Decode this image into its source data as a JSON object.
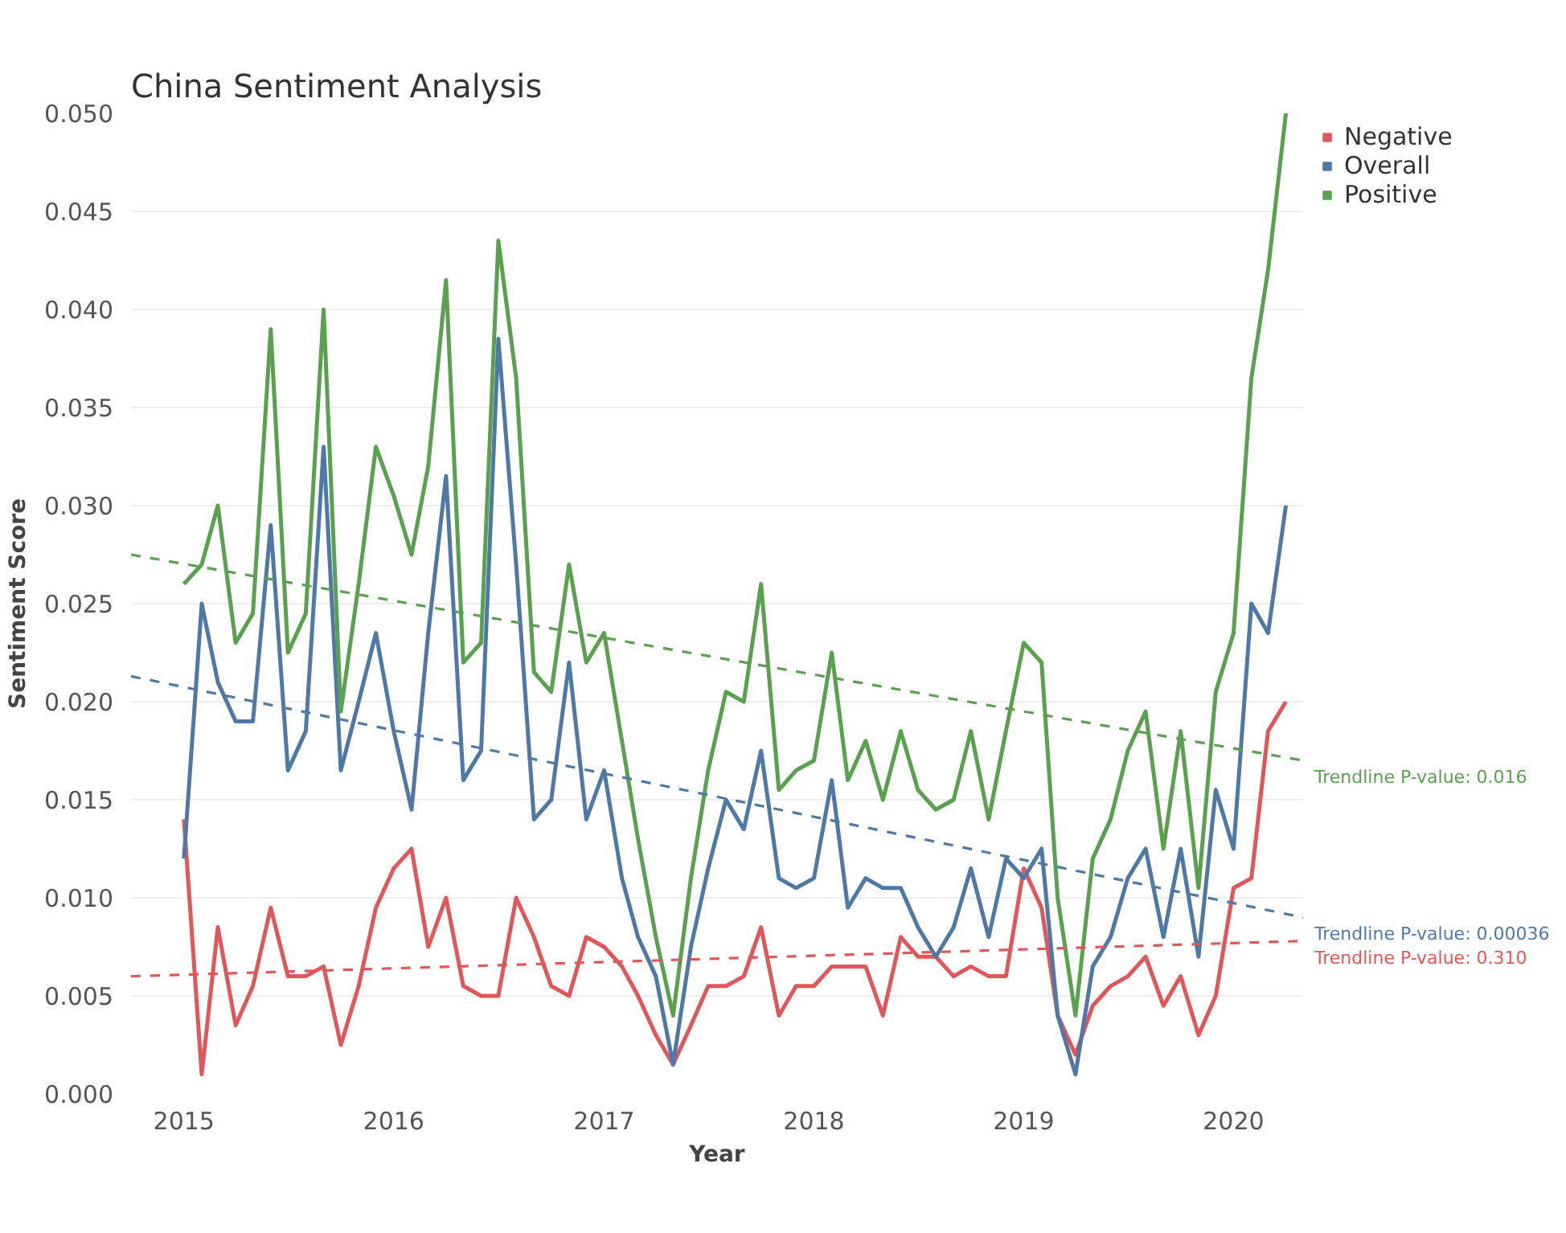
{
  "chart_data": {
    "type": "line",
    "title": "China Sentiment Analysis",
    "xlabel": "Year",
    "ylabel": "Sentiment Score",
    "x": [
      "2015-01",
      "2015-02",
      "2015-03",
      "2015-04",
      "2015-05",
      "2015-06",
      "2015-07",
      "2015-08",
      "2015-09",
      "2015-10",
      "2015-11",
      "2015-12",
      "2016-01",
      "2016-02",
      "2016-03",
      "2016-04",
      "2016-05",
      "2016-06",
      "2016-07",
      "2016-08",
      "2016-09",
      "2016-10",
      "2016-11",
      "2016-12",
      "2017-01",
      "2017-02",
      "2017-03",
      "2017-04",
      "2017-05",
      "2017-06",
      "2017-07",
      "2017-08",
      "2017-09",
      "2017-10",
      "2017-11",
      "2017-12",
      "2018-01",
      "2018-02",
      "2018-03",
      "2018-04",
      "2018-05",
      "2018-06",
      "2018-07",
      "2018-08",
      "2018-09",
      "2018-10",
      "2018-11",
      "2018-12",
      "2019-01",
      "2019-02",
      "2019-03",
      "2019-04",
      "2019-05",
      "2019-06",
      "2019-07",
      "2019-08",
      "2019-09",
      "2019-10",
      "2019-11",
      "2019-12",
      "2020-01",
      "2020-02",
      "2020-03",
      "2020-04"
    ],
    "series": [
      {
        "name": "Negative",
        "color": "#e15759",
        "values": [
          0.014,
          0.001,
          0.0085,
          0.0035,
          0.0055,
          0.0095,
          0.006,
          0.006,
          0.0065,
          0.0025,
          0.0055,
          0.0095,
          0.0115,
          0.0125,
          0.0075,
          0.01,
          0.0055,
          0.005,
          0.005,
          0.01,
          0.008,
          0.0055,
          0.005,
          0.008,
          0.0075,
          0.0065,
          0.005,
          0.003,
          0.0015,
          0.0035,
          0.0055,
          0.0055,
          0.006,
          0.0085,
          0.004,
          0.0055,
          0.0055,
          0.0065,
          0.0065,
          0.0065,
          0.004,
          0.008,
          0.007,
          0.007,
          0.006,
          0.0065,
          0.006,
          0.006,
          0.0115,
          0.0095,
          0.004,
          0.002,
          0.0045,
          0.0055,
          0.006,
          0.007,
          0.0045,
          0.006,
          0.003,
          0.005,
          0.0105,
          0.011,
          0.0185,
          0.02
        ]
      },
      {
        "name": "Overall",
        "color": "#4e79a7",
        "values": [
          0.012,
          0.025,
          0.021,
          0.019,
          0.019,
          0.029,
          0.0165,
          0.0185,
          0.033,
          0.0165,
          0.02,
          0.0235,
          0.0185,
          0.0145,
          0.0235,
          0.0315,
          0.016,
          0.0175,
          0.0385,
          0.027,
          0.014,
          0.015,
          0.022,
          0.014,
          0.0165,
          0.011,
          0.008,
          0.006,
          0.0015,
          0.0075,
          0.0115,
          0.015,
          0.0135,
          0.0175,
          0.011,
          0.0105,
          0.011,
          0.016,
          0.0095,
          0.011,
          0.0105,
          0.0105,
          0.0085,
          0.007,
          0.0085,
          0.0115,
          0.008,
          0.012,
          0.011,
          0.0125,
          0.004,
          0.001,
          0.0065,
          0.008,
          0.011,
          0.0125,
          0.008,
          0.0125,
          0.007,
          0.0155,
          0.0125,
          0.025,
          0.0235,
          0.03
        ]
      },
      {
        "name": "Positive",
        "color": "#59a14f",
        "values": [
          0.026,
          0.027,
          0.03,
          0.023,
          0.0245,
          0.039,
          0.0225,
          0.0245,
          0.04,
          0.0195,
          0.026,
          0.033,
          0.0305,
          0.0275,
          0.032,
          0.0415,
          0.022,
          0.023,
          0.0435,
          0.0365,
          0.0215,
          0.0205,
          0.027,
          0.022,
          0.0235,
          0.018,
          0.013,
          0.008,
          0.004,
          0.011,
          0.0165,
          0.0205,
          0.02,
          0.026,
          0.0155,
          0.0165,
          0.017,
          0.0225,
          0.016,
          0.018,
          0.015,
          0.0185,
          0.0155,
          0.0145,
          0.015,
          0.0185,
          0.014,
          0.0185,
          0.023,
          0.022,
          0.01,
          0.004,
          0.012,
          0.014,
          0.0175,
          0.0195,
          0.0125,
          0.0185,
          0.0105,
          0.0205,
          0.0235,
          0.0365,
          0.042,
          0.05
        ]
      },
      {
        "color": "#e15759",
        "line_style": "dashed",
        "x": [
          "2014-10",
          "2020-05"
        ],
        "values": [
          0.006,
          0.0078
        ]
      },
      {
        "color": "#4e79a7",
        "line_style": "dashed",
        "x": [
          "2014-10",
          "2020-05"
        ],
        "values": [
          0.0213,
          0.009
        ]
      },
      {
        "color": "#59a14f",
        "line_style": "dashed",
        "x": [
          "2014-10",
          "2020-05"
        ],
        "values": [
          0.0275,
          0.017
        ]
      }
    ],
    "annotations": [
      {
        "text": "Trendline P-value: 0.310",
        "x": "2020-05",
        "y": 0.0078
      },
      {
        "text": "Trendline P-value: 0.00036",
        "x": "2020-05",
        "y": 0.009
      },
      {
        "text": "Trendline P-value: 0.016",
        "x": "2020-05",
        "y": 0.017
      }
    ],
    "xlim": [
      "2014-10",
      "2020-05"
    ],
    "xticks": [
      "2015",
      "2016",
      "2017",
      "2018",
      "2019",
      "2020"
    ],
    "ylim": [
      0,
      0.05
    ],
    "yticks": [
      {
        "value": 0,
        "label": "0.000"
      },
      {
        "value": 0.005,
        "label": "0.005"
      },
      {
        "value": 0.01,
        "label": "0.010"
      },
      {
        "value": 0.015,
        "label": "0.015"
      },
      {
        "value": 0.02,
        "label": "0.020"
      },
      {
        "value": 0.025,
        "label": "0.025"
      },
      {
        "value": 0.03,
        "label": "0.030"
      },
      {
        "value": 0.035,
        "label": "0.035"
      },
      {
        "value": 0.04,
        "label": "0.040"
      },
      {
        "value": 0.045,
        "label": "0.045"
      },
      {
        "value": 0.05,
        "label": "0.050"
      }
    ],
    "grid": "y",
    "legend": "top right",
    "line_style": "solid",
    "marker": "none"
  }
}
